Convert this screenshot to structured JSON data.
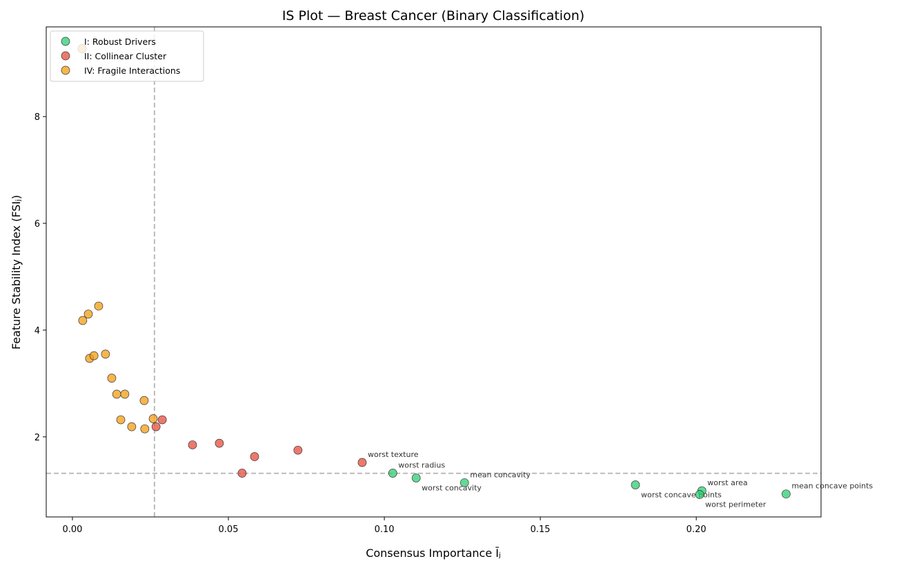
{
  "chart_data": {
    "type": "scatter",
    "title": "IS Plot — Breast Cancer (Binary Classification)",
    "xlabel": "Consensus Importance Īⱼ",
    "ylabel": "Feature Stability Index (FSIⱼ)",
    "xlim": [
      -0.0084,
      0.24
    ],
    "ylim": [
      0.5,
      9.68
    ],
    "xticks": [
      0.0,
      0.05,
      0.1,
      0.15,
      0.2
    ],
    "xtick_labels": [
      "0.00",
      "0.05",
      "0.10",
      "0.15",
      "0.20"
    ],
    "yticks": [
      2,
      4,
      6,
      8
    ],
    "ytick_labels": [
      "2",
      "4",
      "6",
      "8"
    ],
    "grid": false,
    "legend_position": "top-left",
    "reference_lines": {
      "x_threshold": 0.0263,
      "y_threshold": 1.316
    },
    "series": [
      {
        "name": "I: Robust Drivers",
        "color": "#2ecc71",
        "points": [
          {
            "x": 0.1027,
            "y": 1.32,
            "label": "worst radius"
          },
          {
            "x": 0.1102,
            "y": 1.23,
            "label": "worst concavity"
          },
          {
            "x": 0.1257,
            "y": 1.14,
            "label": "mean concavity"
          },
          {
            "x": 0.1805,
            "y": 1.1,
            "label": "worst concave points"
          },
          {
            "x": 0.2018,
            "y": 0.99,
            "label": "worst area"
          },
          {
            "x": 0.2011,
            "y": 0.92,
            "label": "worst perimeter"
          },
          {
            "x": 0.2288,
            "y": 0.93,
            "label": "mean concave points"
          }
        ]
      },
      {
        "name": "II: Collinear Cluster",
        "color": "#e74c3c",
        "points": [
          {
            "x": 0.0268,
            "y": 2.19
          },
          {
            "x": 0.0288,
            "y": 2.32
          },
          {
            "x": 0.0385,
            "y": 1.85
          },
          {
            "x": 0.0471,
            "y": 1.88
          },
          {
            "x": 0.0584,
            "y": 1.63
          },
          {
            "x": 0.0544,
            "y": 1.32
          },
          {
            "x": 0.0723,
            "y": 1.75
          },
          {
            "x": 0.0929,
            "y": 1.52,
            "label": "worst texture"
          }
        ]
      },
      {
        "name": "IV: Fragile Interactions",
        "color": "#f39c12",
        "points": [
          {
            "x": 0.0031,
            "y": 9.27
          },
          {
            "x": 0.0033,
            "y": 4.18
          },
          {
            "x": 0.0051,
            "y": 4.3
          },
          {
            "x": 0.0084,
            "y": 4.45
          },
          {
            "x": 0.0055,
            "y": 3.47
          },
          {
            "x": 0.0069,
            "y": 3.52
          },
          {
            "x": 0.0106,
            "y": 3.55
          },
          {
            "x": 0.0126,
            "y": 3.1
          },
          {
            "x": 0.0142,
            "y": 2.8
          },
          {
            "x": 0.0168,
            "y": 2.8
          },
          {
            "x": 0.023,
            "y": 2.68
          },
          {
            "x": 0.0155,
            "y": 2.32
          },
          {
            "x": 0.019,
            "y": 2.19
          },
          {
            "x": 0.0232,
            "y": 2.15
          },
          {
            "x": 0.0259,
            "y": 2.34
          }
        ]
      }
    ]
  }
}
